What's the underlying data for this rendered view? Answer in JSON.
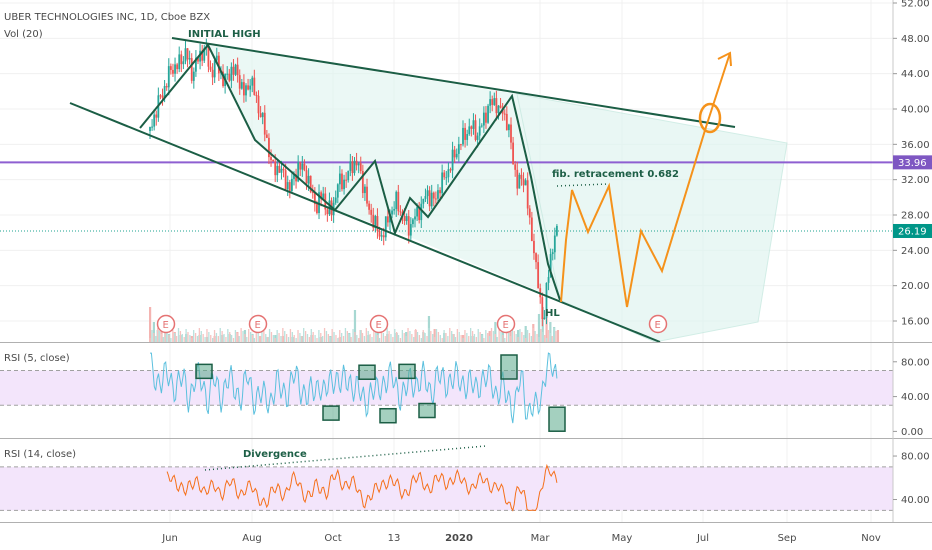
{
  "chart_data": {
    "type": "candlestick",
    "header": {
      "title": "UBER TECHNOLOGIES INC, 1D, Cboe BZX",
      "volume_label": "Vol (20)"
    },
    "x_axis": {
      "labels": [
        "Jun",
        "Aug",
        "Oct",
        "13",
        "2020",
        "Mar",
        "May",
        "Jul",
        "Sep",
        "Nov"
      ],
      "bold_label": "2020"
    },
    "price_pane": {
      "y_ticks": [
        "52.00",
        "48.00",
        "44.00",
        "40.00",
        "36.00",
        "32.00",
        "28.00",
        "24.00",
        "20.00",
        "16.00"
      ],
      "ylim": [
        14.5,
        52
      ],
      "price_tags": [
        {
          "value": "33.96",
          "color": "#7e57c2"
        },
        {
          "value": "26.19",
          "color": "#009688"
        }
      ],
      "levels": {
        "purple_line": 33.96,
        "green_dotted": 26.19
      },
      "price_path": [
        [
          0,
          37.5
        ],
        [
          8,
          40.5
        ],
        [
          14,
          42
        ],
        [
          22,
          44.5
        ],
        [
          30,
          45
        ],
        [
          38,
          46.5
        ],
        [
          44,
          44
        ],
        [
          50,
          45.5
        ],
        [
          58,
          47
        ],
        [
          64,
          44
        ],
        [
          70,
          45.5
        ],
        [
          78,
          43
        ],
        [
          86,
          44.5
        ],
        [
          92,
          44
        ],
        [
          100,
          41.5
        ],
        [
          106,
          43.5
        ],
        [
          112,
          41
        ],
        [
          118,
          39
        ],
        [
          124,
          36
        ],
        [
          130,
          33
        ],
        [
          136,
          33.5
        ],
        [
          142,
          32
        ],
        [
          148,
          31
        ],
        [
          156,
          33.5
        ],
        [
          164,
          33
        ],
        [
          170,
          30.5
        ],
        [
          176,
          29
        ],
        [
          182,
          30.5
        ],
        [
          186,
          28.5
        ],
        [
          192,
          28.5
        ],
        [
          198,
          31.5
        ],
        [
          206,
          32
        ],
        [
          214,
          34
        ],
        [
          220,
          33.5
        ],
        [
          226,
          31
        ],
        [
          230,
          28.5
        ],
        [
          236,
          27.5
        ],
        [
          242,
          25.5
        ],
        [
          248,
          26.5
        ],
        [
          254,
          28.5
        ],
        [
          260,
          29.5
        ],
        [
          266,
          28
        ],
        [
          272,
          26.5
        ],
        [
          278,
          27.5
        ],
        [
          286,
          29
        ],
        [
          292,
          30.5
        ],
        [
          300,
          29.5
        ],
        [
          306,
          31.5
        ],
        [
          312,
          32.5
        ],
        [
          318,
          34
        ],
        [
          326,
          36
        ],
        [
          334,
          37.5
        ],
        [
          340,
          38
        ],
        [
          346,
          37
        ],
        [
          352,
          39
        ],
        [
          358,
          40.5
        ],
        [
          364,
          41
        ],
        [
          368,
          39.5
        ],
        [
          372,
          40
        ],
        [
          376,
          38.5
        ],
        [
          380,
          36.5
        ],
        [
          384,
          33.5
        ],
        [
          388,
          31
        ],
        [
          392,
          32.5
        ],
        [
          396,
          31.5
        ],
        [
          400,
          27
        ],
        [
          404,
          25
        ],
        [
          408,
          21
        ],
        [
          412,
          17.5
        ],
        [
          416,
          16.5
        ],
        [
          418,
          19.5
        ],
        [
          421,
          22
        ],
        [
          424,
          24.5
        ],
        [
          427,
          25.5
        ],
        [
          430,
          26.2
        ]
      ],
      "volume_bars": [
        [
          0,
          0.35
        ],
        [
          4,
          0.2
        ],
        [
          8,
          0.12
        ],
        [
          12,
          0.15
        ],
        [
          16,
          0.1
        ],
        [
          20,
          0.08
        ],
        [
          26,
          0.1
        ],
        [
          32,
          0.07
        ],
        [
          38,
          0.08
        ],
        [
          44,
          0.06
        ],
        [
          52,
          0.07
        ],
        [
          60,
          0.05
        ],
        [
          68,
          0.06
        ],
        [
          76,
          0.07
        ],
        [
          84,
          0.08
        ],
        [
          92,
          0.1
        ],
        [
          100,
          0.12
        ],
        [
          108,
          0.08
        ],
        [
          116,
          0.06
        ],
        [
          124,
          0.05
        ],
        [
          132,
          0.07
        ],
        [
          140,
          0.06
        ],
        [
          150,
          0.05
        ],
        [
          160,
          0.06
        ],
        [
          170,
          0.07
        ],
        [
          180,
          0.05
        ],
        [
          190,
          0.06
        ],
        [
          200,
          0.05
        ],
        [
          210,
          0.09
        ],
        [
          216,
          0.32
        ],
        [
          222,
          0.12
        ],
        [
          230,
          0.07
        ],
        [
          240,
          0.1
        ],
        [
          250,
          0.08
        ],
        [
          260,
          0.09
        ],
        [
          270,
          0.1
        ],
        [
          280,
          0.12
        ],
        [
          288,
          0.1
        ],
        [
          294,
          0.26
        ],
        [
          300,
          0.13
        ],
        [
          310,
          0.09
        ],
        [
          320,
          0.08
        ],
        [
          330,
          0.07
        ],
        [
          340,
          0.06
        ],
        [
          350,
          0.08
        ],
        [
          358,
          0.11
        ],
        [
          364,
          0.2
        ],
        [
          372,
          0.14
        ],
        [
          380,
          0.1
        ],
        [
          388,
          0.12
        ],
        [
          396,
          0.16
        ],
        [
          404,
          0.18
        ],
        [
          410,
          0.28
        ],
        [
          414,
          0.35
        ],
        [
          418,
          0.3
        ],
        [
          422,
          0.2
        ],
        [
          426,
          0.15
        ],
        [
          430,
          0.12
        ]
      ],
      "earnings_markers": [
        0,
        0,
        0,
        0,
        0
      ],
      "annotations": {
        "initial_high": "INITIAL HIGH",
        "fib": "fib. retracement 0.682",
        "hl": "HL"
      },
      "projection_path": [
        [
          16.5,
          0
        ],
        [
          28,
          1
        ],
        [
          31,
          2
        ],
        [
          25.5,
          3
        ],
        [
          31.5,
          4
        ],
        [
          17.5,
          5
        ],
        [
          25.5,
          6
        ],
        [
          21.5,
          7
        ],
        [
          36.5,
          8
        ],
        [
          46.5,
          9
        ]
      ],
      "box_markers": []
    },
    "rsi5_pane": {
      "label": "RSI (5, close)",
      "y_ticks": [
        "80.00",
        "40.00",
        "0.00"
      ],
      "ylim": [
        -3,
        97
      ],
      "band": [
        30,
        70
      ],
      "highlight_boxes": [
        {
          "value": 69,
          "kind": "overbought"
        },
        {
          "value": 68,
          "kind": "overbought"
        },
        {
          "value": 69,
          "kind": "overbought"
        },
        {
          "value": 74,
          "kind": "overbought"
        },
        {
          "value": 21,
          "kind": "oversold"
        },
        {
          "value": 18,
          "kind": "oversold"
        },
        {
          "value": 24,
          "kind": "oversold"
        },
        {
          "value": 14,
          "kind": "oversold"
        }
      ]
    },
    "rsi14_pane": {
      "label": "RSI (14, close)",
      "y_ticks": [
        "80.00",
        "40.00"
      ],
      "ylim": [
        23,
        92
      ],
      "band": [
        30,
        70
      ],
      "annotation": "Divergence"
    },
    "colors": {
      "up": "#26a69a",
      "down": "#ef5350",
      "trendline": "#1b5e45",
      "channel_fill": "#e0f5f0",
      "projection": "#f5921b",
      "rsi5_line": "#5bc0de",
      "rsi14_line": "#f5701b",
      "band_fill": "#f3e5fb",
      "earnings": "#e57373"
    }
  }
}
